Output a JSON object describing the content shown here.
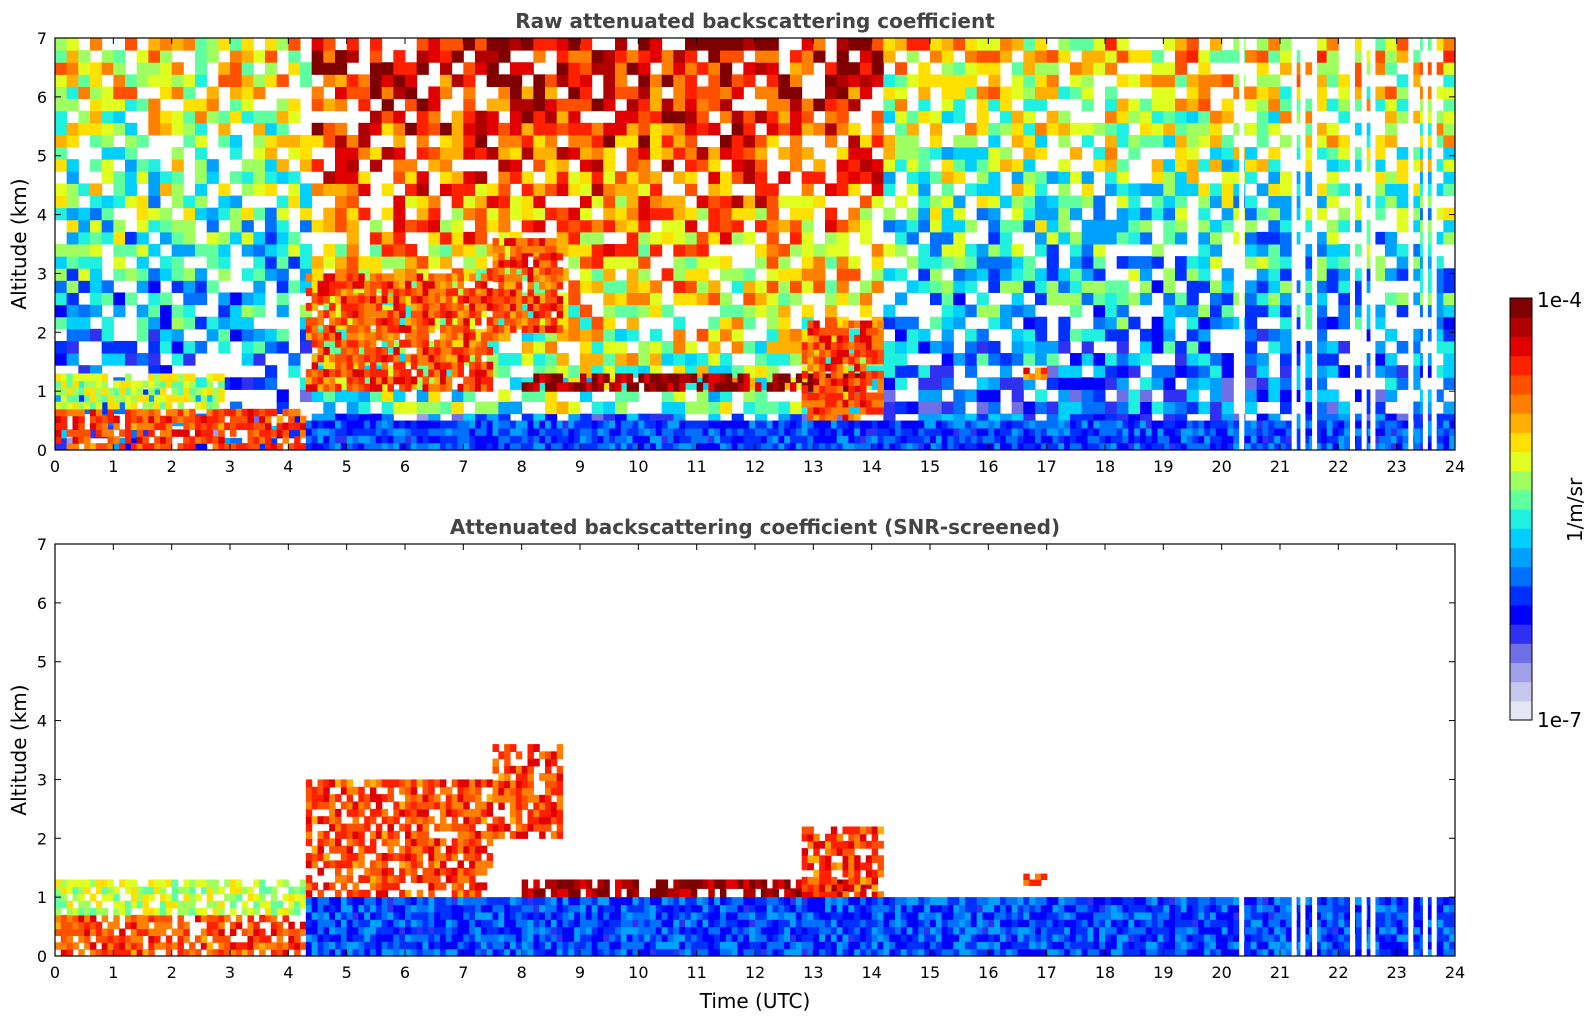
{
  "figure": {
    "colorbar_label": "1/m/sr",
    "colorbar_top": "1e-4",
    "colorbar_bottom": "1e-7",
    "colorbar_colors": [
      "#e6e6f5",
      "#c8c8ee",
      "#a0a0e8",
      "#7070e6",
      "#3030f0",
      "#0000ff",
      "#0030ff",
      "#0070ff",
      "#00a0ff",
      "#00d0ff",
      "#20f0e0",
      "#60ffa0",
      "#a0ff60",
      "#e0ff20",
      "#ffe000",
      "#ffb000",
      "#ff8000",
      "#ff5000",
      "#ff2000",
      "#e00000",
      "#b00000",
      "#800000"
    ]
  },
  "chart_data": [
    {
      "type": "heatmap",
      "title": "Raw attenuated backscattering coefficient",
      "xlabel": "",
      "ylabel": "Altitude (km)",
      "xlim": [
        0,
        24
      ],
      "ylim": [
        0,
        7
      ],
      "x_ticks": [
        "0",
        "1",
        "2",
        "3",
        "4",
        "5",
        "6",
        "7",
        "8",
        "9",
        "10",
        "11",
        "12",
        "13",
        "14",
        "15",
        "16",
        "17",
        "18",
        "19",
        "20",
        "21",
        "22",
        "23",
        "24"
      ],
      "y_ticks": [
        "0",
        "1",
        "2",
        "3",
        "4",
        "5",
        "6",
        "7"
      ],
      "colorscale": "log",
      "color_range": [
        "1e-7",
        "1e-4"
      ],
      "features": [
        {
          "time": [
            0,
            4.3
          ],
          "altitude": [
            0,
            0.7
          ],
          "level": "high (red/orange)"
        },
        {
          "time": [
            0,
            2.9
          ],
          "altitude": [
            0.7,
            1.3
          ],
          "level": "medium (cyan/green)"
        },
        {
          "time": [
            4.3,
            7.5
          ],
          "altitude": [
            1.0,
            3.0
          ],
          "level": "high (orange/red cloud)"
        },
        {
          "time": [
            7.5,
            8.7
          ],
          "altitude": [
            2.0,
            3.6
          ],
          "level": "high (orange/red cloud)"
        },
        {
          "time": [
            8.0,
            14.0
          ],
          "altitude": [
            1.0,
            1.3
          ],
          "level": "very high (cloud layer)"
        },
        {
          "time": [
            12.8,
            14.2
          ],
          "altitude": [
            0,
            2.2
          ],
          "level": "high (precipitating cloud)"
        },
        {
          "time": [
            4.3,
            24
          ],
          "altitude": [
            0,
            0.5
          ],
          "level": "low (blue boundary layer)"
        },
        {
          "time": [
            16.6,
            17.0
          ],
          "altitude": [
            1.2,
            1.4
          ],
          "level": "high (small cloud)"
        }
      ],
      "missing_data_times": [
        20.3,
        21.2,
        21.35,
        21.55,
        22.2,
        22.4,
        22.55,
        23.2,
        23.45,
        23.6
      ]
    },
    {
      "type": "heatmap",
      "title": "Attenuated backscattering coefficient (SNR-screened)",
      "xlabel": "Time (UTC)",
      "ylabel": "Altitude (km)",
      "xlim": [
        0,
        24
      ],
      "ylim": [
        0,
        7
      ],
      "x_ticks": [
        "0",
        "1",
        "2",
        "3",
        "4",
        "5",
        "6",
        "7",
        "8",
        "9",
        "10",
        "11",
        "12",
        "13",
        "14",
        "15",
        "16",
        "17",
        "18",
        "19",
        "20",
        "21",
        "22",
        "23",
        "24"
      ],
      "y_ticks": [
        "0",
        "1",
        "2",
        "3",
        "4",
        "5",
        "6",
        "7"
      ],
      "colorscale": "log",
      "color_range": [
        "1e-7",
        "1e-4"
      ],
      "features": [
        {
          "time": [
            0,
            4.3
          ],
          "altitude": [
            0,
            0.7
          ],
          "level": "high (red/orange)"
        },
        {
          "time": [
            0,
            4.3
          ],
          "altitude": [
            0.7,
            1.3
          ],
          "level": "medium (cyan/green)"
        },
        {
          "time": [
            4.3,
            7.5
          ],
          "altitude": [
            1.0,
            3.0
          ],
          "level": "high (orange/red cloud)"
        },
        {
          "time": [
            7.5,
            8.7
          ],
          "altitude": [
            2.0,
            3.6
          ],
          "level": "high (orange/red cloud)"
        },
        {
          "time": [
            8.0,
            14.0
          ],
          "altitude": [
            1.0,
            1.3
          ],
          "level": "very high (cloud layer)"
        },
        {
          "time": [
            12.8,
            14.2
          ],
          "altitude": [
            0,
            2.2
          ],
          "level": "high (precipitating cloud)"
        },
        {
          "time": [
            4.3,
            24
          ],
          "altitude": [
            0,
            1.0
          ],
          "level": "low (blue boundary layer)"
        },
        {
          "time": [
            16.6,
            17.0
          ],
          "altitude": [
            1.2,
            1.4
          ],
          "level": "high (small cloud)"
        }
      ],
      "missing_data_times": [
        20.3,
        21.2,
        21.35,
        21.55,
        22.2,
        22.4,
        22.55,
        23.2,
        23.45,
        23.6
      ]
    }
  ]
}
